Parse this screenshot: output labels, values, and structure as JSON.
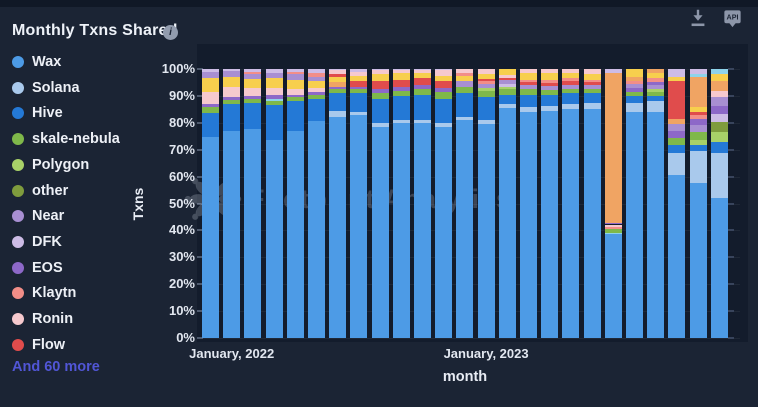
{
  "header": {
    "title": "Monthly Txns Shared",
    "info_tooltip_glyph": "i"
  },
  "toolbar": {
    "api_label": "API"
  },
  "legend": {
    "items": [
      {
        "name": "Wax",
        "key": "wax"
      },
      {
        "name": "Solana",
        "key": "sol"
      },
      {
        "name": "Hive",
        "key": "hive"
      },
      {
        "name": "skale-nebula",
        "key": "grn"
      },
      {
        "name": "Polygon",
        "key": "lgrn"
      },
      {
        "name": "other",
        "key": "olv"
      },
      {
        "name": "Near",
        "key": "pur"
      },
      {
        "name": "DFK",
        "key": "lav"
      },
      {
        "name": "EOS",
        "key": "vio"
      },
      {
        "name": "Klaytn",
        "key": "sal"
      },
      {
        "name": "Ronin",
        "key": "pnk"
      },
      {
        "name": "Flow",
        "key": "red"
      }
    ],
    "more_label": "And 60 more",
    "more_color": "#5156d6"
  },
  "chart_data": {
    "type": "bar",
    "stacked": true,
    "percent_stack": true,
    "title": "Monthly Txns Shared",
    "xlabel": "month",
    "ylabel": "Txns",
    "ylim": [
      0,
      100
    ],
    "grid": true,
    "legend_position": "left",
    "y_ticks": [
      "0%",
      "10%",
      "20%",
      "30%",
      "40%",
      "50%",
      "60%",
      "70%",
      "80%",
      "90%",
      "100%"
    ],
    "x_tick_labels": [
      {
        "bar_index": 1,
        "label": "January, 2022"
      },
      {
        "bar_index": 13,
        "label": "January, 2023"
      }
    ],
    "segment_colors": {
      "wax": "#4d9be6",
      "sol": "#a9c9ec",
      "hive": "#2479d6",
      "grn": "#7fb84a",
      "lgrn": "#a8d168",
      "olv": "#7f9c3d",
      "pur": "#a88fd2",
      "lav": "#cdbce6",
      "vio": "#8d68c8",
      "sal": "#f28e88",
      "pnk": "#f6c9ce",
      "red": "#e04c4c",
      "yel": "#f7cf4d",
      "org": "#f0a463",
      "cyn": "#8ed3ea"
    },
    "bars": [
      {
        "month": "2021-12",
        "segments": [
          [
            "wax",
            74.8
          ],
          [
            "hive",
            9
          ],
          [
            "grn",
            2
          ],
          [
            "vio",
            1.2
          ],
          [
            "pnk",
            4.5
          ],
          [
            "yel",
            5
          ],
          [
            "pur",
            2.5
          ],
          [
            "lav",
            1
          ]
        ]
      },
      {
        "month": "2022-01",
        "segments": [
          [
            "wax",
            77
          ],
          [
            "hive",
            10
          ],
          [
            "grn",
            1.5
          ],
          [
            "vio",
            1.2
          ],
          [
            "pnk",
            3.5
          ],
          [
            "yel",
            4
          ],
          [
            "pur",
            2
          ],
          [
            "lav",
            0.8
          ]
        ]
      },
      {
        "month": "2022-02",
        "segments": [
          [
            "wax",
            77.8
          ],
          [
            "hive",
            9.5
          ],
          [
            "grn",
            1.5
          ],
          [
            "vio",
            1.2
          ],
          [
            "pnk",
            2.8
          ],
          [
            "yel",
            3.5
          ],
          [
            "pur",
            1.7
          ],
          [
            "sal",
            1
          ],
          [
            "lav",
            1
          ]
        ]
      },
      {
        "month": "2022-03",
        "segments": [
          [
            "wax",
            73.5
          ],
          [
            "hive",
            13
          ],
          [
            "grn",
            1.5
          ],
          [
            "cyn",
            1
          ],
          [
            "vio",
            1.5
          ],
          [
            "pnk",
            2.5
          ],
          [
            "yel",
            3.5
          ],
          [
            "pur",
            2
          ],
          [
            "lav",
            1.5
          ]
        ]
      },
      {
        "month": "2022-04",
        "segments": [
          [
            "wax",
            77
          ],
          [
            "hive",
            11
          ],
          [
            "grn",
            1.5
          ],
          [
            "vio",
            1
          ],
          [
            "pnk",
            2
          ],
          [
            "yel",
            3.5
          ],
          [
            "pur",
            2
          ],
          [
            "sal",
            1
          ],
          [
            "lav",
            1
          ]
        ]
      },
      {
        "month": "2022-05",
        "segments": [
          [
            "wax",
            80.5
          ],
          [
            "hive",
            8.5
          ],
          [
            "grn",
            1.5
          ],
          [
            "vio",
            1
          ],
          [
            "pnk",
            1.5
          ],
          [
            "yel",
            2.5
          ],
          [
            "pur",
            1.5
          ],
          [
            "sal",
            1.5
          ],
          [
            "lav",
            1.5
          ]
        ]
      },
      {
        "month": "2022-06",
        "segments": [
          [
            "wax",
            82
          ],
          [
            "sol",
            2.5
          ],
          [
            "hive",
            6.5
          ],
          [
            "grn",
            1.5
          ],
          [
            "vio",
            1
          ],
          [
            "org",
            1.5
          ],
          [
            "yel",
            2
          ],
          [
            "red",
            1
          ],
          [
            "pnk",
            1.5
          ],
          [
            "lav",
            0.5
          ]
        ]
      },
      {
        "month": "2022-07",
        "segments": [
          [
            "wax",
            83
          ],
          [
            "sol",
            1
          ],
          [
            "hive",
            7
          ],
          [
            "grn",
            1.5
          ],
          [
            "vio",
            1
          ],
          [
            "red",
            2
          ],
          [
            "yel",
            2
          ],
          [
            "pnk",
            1.5
          ],
          [
            "lav",
            1
          ]
        ]
      },
      {
        "month": "2022-08",
        "segments": [
          [
            "wax",
            78.5
          ],
          [
            "sol",
            1.5
          ],
          [
            "hive",
            9
          ],
          [
            "grn",
            2
          ],
          [
            "vio",
            1.5
          ],
          [
            "red",
            3
          ],
          [
            "yel",
            2.5
          ],
          [
            "pnk",
            1.5
          ],
          [
            "lav",
            0.5
          ]
        ]
      },
      {
        "month": "2022-09",
        "segments": [
          [
            "wax",
            80
          ],
          [
            "sol",
            1
          ],
          [
            "hive",
            9
          ],
          [
            "grn",
            2
          ],
          [
            "vio",
            1.5
          ],
          [
            "red",
            2.5
          ],
          [
            "yel",
            2.5
          ],
          [
            "pnk",
            1
          ],
          [
            "lav",
            0.5
          ]
        ]
      },
      {
        "month": "2022-10",
        "segments": [
          [
            "wax",
            80
          ],
          [
            "sol",
            1
          ],
          [
            "hive",
            9.5
          ],
          [
            "grn",
            2
          ],
          [
            "vio",
            1.5
          ],
          [
            "red",
            2.5
          ],
          [
            "yel",
            2
          ],
          [
            "pnk",
            1
          ],
          [
            "lav",
            0.5
          ]
        ]
      },
      {
        "month": "2022-11",
        "segments": [
          [
            "wax",
            78.5
          ],
          [
            "sol",
            1.5
          ],
          [
            "hive",
            9
          ],
          [
            "grn",
            2.5
          ],
          [
            "vio",
            1.5
          ],
          [
            "red",
            2.5
          ],
          [
            "yel",
            2
          ],
          [
            "pnk",
            2
          ],
          [
            "lav",
            0.5
          ]
        ]
      },
      {
        "month": "2022-12",
        "segments": [
          [
            "wax",
            81
          ],
          [
            "sol",
            1.2
          ],
          [
            "hive",
            9
          ],
          [
            "grn",
            2.3
          ],
          [
            "pur",
            1.9
          ],
          [
            "yel",
            1.9
          ],
          [
            "sal",
            1.2
          ],
          [
            "pnk",
            1.5
          ]
        ]
      },
      {
        "month": "2023-01",
        "segments": [
          [
            "wax",
            79.5
          ],
          [
            "sol",
            1.5
          ],
          [
            "hive",
            8.5
          ],
          [
            "grn",
            2.5
          ],
          [
            "lgrn",
            1
          ],
          [
            "pur",
            1.5
          ],
          [
            "sal",
            1
          ],
          [
            "red",
            0.8
          ],
          [
            "yel",
            1.7
          ],
          [
            "pnk",
            2
          ]
        ]
      },
      {
        "month": "2023-02",
        "segments": [
          [
            "wax",
            85.5
          ],
          [
            "sol",
            1.5
          ],
          [
            "hive",
            3.5
          ],
          [
            "grn",
            2
          ],
          [
            "lgrn",
            1
          ],
          [
            "lav",
            0.8
          ],
          [
            "pur",
            1.5
          ],
          [
            "red",
            0.7
          ],
          [
            "pnk",
            1.3
          ],
          [
            "yel",
            2.2
          ]
        ]
      },
      {
        "month": "2023-03",
        "segments": [
          [
            "wax",
            84
          ],
          [
            "sol",
            2
          ],
          [
            "hive",
            4.5
          ],
          [
            "grn",
            2
          ],
          [
            "pur",
            1.5
          ],
          [
            "red",
            1
          ],
          [
            "sal",
            1
          ],
          [
            "yel",
            2.5
          ],
          [
            "pnk",
            1.5
          ]
        ]
      },
      {
        "month": "2023-04",
        "segments": [
          [
            "wax",
            84.3
          ],
          [
            "sol",
            2
          ],
          [
            "hive",
            4
          ],
          [
            "grn",
            1.8
          ],
          [
            "pur",
            1.6
          ],
          [
            "red",
            1.1
          ],
          [
            "sal",
            1.2
          ],
          [
            "yel",
            2.5
          ],
          [
            "pnk",
            1.5
          ]
        ]
      },
      {
        "month": "2023-05",
        "segments": [
          [
            "wax",
            85
          ],
          [
            "sol",
            2
          ],
          [
            "hive",
            4
          ],
          [
            "grn",
            1.5
          ],
          [
            "pur",
            1.5
          ],
          [
            "red",
            1.5
          ],
          [
            "sal",
            1
          ],
          [
            "yel",
            2
          ],
          [
            "pnk",
            1.5
          ]
        ]
      },
      {
        "month": "2023-06",
        "segments": [
          [
            "wax",
            85
          ],
          [
            "sol",
            2.5
          ],
          [
            "hive",
            3.5
          ],
          [
            "grn",
            1.5
          ],
          [
            "pur",
            1.5
          ],
          [
            "red",
            1
          ],
          [
            "sal",
            1
          ],
          [
            "yel",
            2
          ],
          [
            "pnk",
            2
          ]
        ]
      },
      {
        "month": "2023-07",
        "segments": [
          [
            "wax",
            38.5
          ],
          [
            "cyn",
            0.7
          ],
          [
            "grn",
            1.2
          ],
          [
            "sal",
            1
          ],
          [
            "pnk",
            0.8
          ],
          [
            "vio",
            0.5
          ],
          [
            "org",
            55.8
          ],
          [
            "lav",
            1.5
          ]
        ]
      },
      {
        "month": "2023-08",
        "segments": [
          [
            "wax",
            84
          ],
          [
            "sol",
            3.5
          ],
          [
            "hive",
            2.5
          ],
          [
            "grn",
            1.5
          ],
          [
            "vio",
            1.3
          ],
          [
            "pur",
            1.5
          ],
          [
            "sal",
            1.2
          ],
          [
            "org",
            1.5
          ],
          [
            "yel",
            3
          ]
        ]
      },
      {
        "month": "2023-09",
        "segments": [
          [
            "wax",
            84
          ],
          [
            "sol",
            4
          ],
          [
            "hive",
            2
          ],
          [
            "grn",
            1.5
          ],
          [
            "lgrn",
            1
          ],
          [
            "pur",
            1.5
          ],
          [
            "vio",
            1
          ],
          [
            "sal",
            1.5
          ],
          [
            "yel",
            2
          ],
          [
            "org",
            1.5
          ]
        ]
      },
      {
        "month": "2023-10",
        "segments": [
          [
            "wax",
            60.5
          ],
          [
            "sol",
            8.3
          ],
          [
            "hive",
            3
          ],
          [
            "grn",
            2.7
          ],
          [
            "vio",
            2.5
          ],
          [
            "pur",
            2.5
          ],
          [
            "org",
            1.8
          ],
          [
            "red",
            14.2
          ],
          [
            "yel",
            1.5
          ],
          [
            "lav",
            3
          ]
        ]
      },
      {
        "month": "2023-11",
        "segments": [
          [
            "wax",
            57.5
          ],
          [
            "sol",
            12
          ],
          [
            "hive",
            2.1
          ],
          [
            "lgrn",
            1.9
          ],
          [
            "grn",
            3.1
          ],
          [
            "pur",
            2.5
          ],
          [
            "vio",
            2.4
          ],
          [
            "sal",
            1.5
          ],
          [
            "red",
            1
          ],
          [
            "yel",
            1.9
          ],
          [
            "org",
            11.2
          ],
          [
            "cyn",
            1.2
          ],
          [
            "lav",
            1.7
          ]
        ]
      },
      {
        "month": "2023-12",
        "segments": [
          [
            "wax",
            52
          ],
          [
            "sol",
            16.7
          ],
          [
            "hive",
            4.3
          ],
          [
            "lgrn",
            3.7
          ],
          [
            "olv",
            3.7
          ],
          [
            "lav",
            3
          ],
          [
            "vio",
            3
          ],
          [
            "pur",
            3.1
          ],
          [
            "pnk",
            2.5
          ],
          [
            "org",
            3.5
          ],
          [
            "yel",
            2.7
          ],
          [
            "cyn",
            1.8
          ]
        ]
      }
    ],
    "watermark": "Footprint Analytics"
  }
}
